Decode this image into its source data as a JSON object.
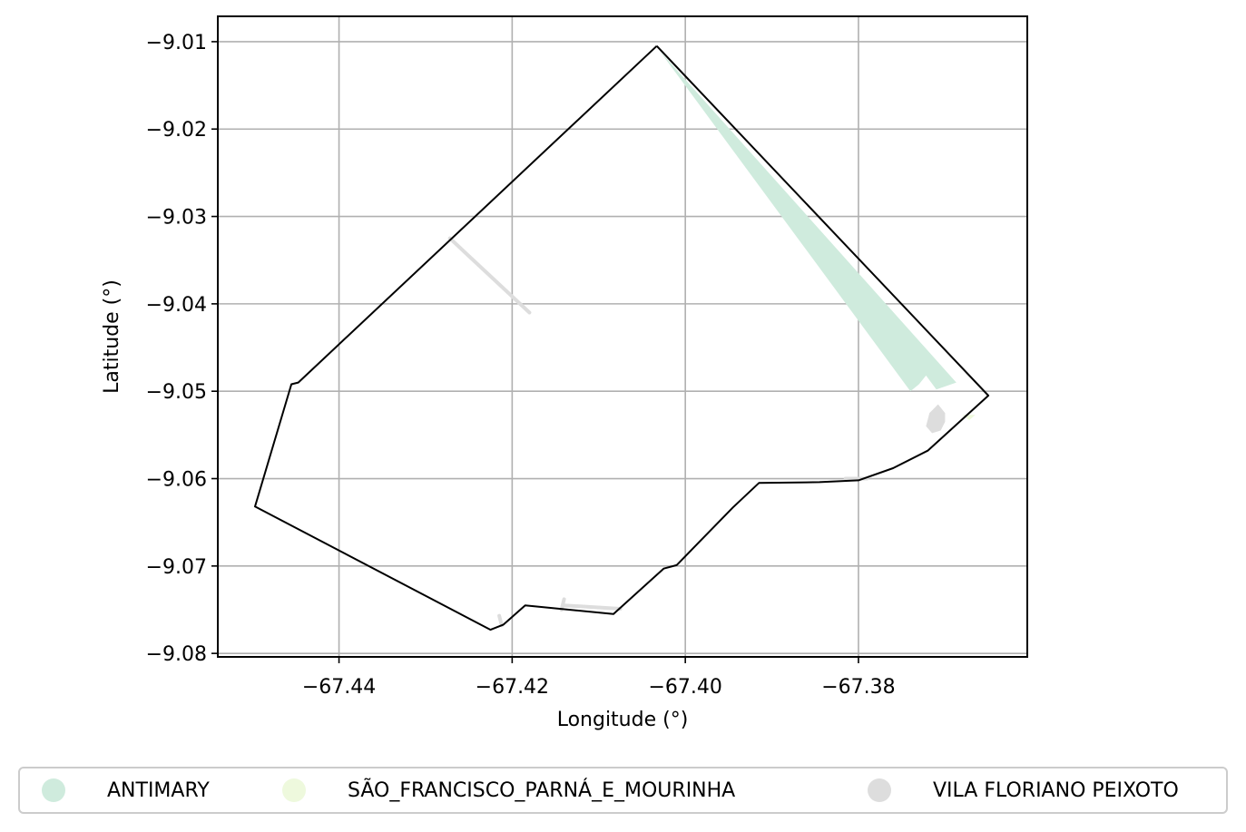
{
  "chart_data": {
    "type": "map",
    "title": "",
    "xlabel": "Longitude (°)",
    "ylabel": "Latitude (°)",
    "xlim": [
      -67.454,
      -67.3605
    ],
    "ylim": [
      -9.0804,
      -9.0071
    ],
    "xticks": [
      -67.44,
      -67.42,
      -67.4,
      -67.38
    ],
    "xtick_labels": [
      "−67.44",
      "−67.42",
      "−67.40",
      "−67.38"
    ],
    "yticks": [
      -9.01,
      -9.02,
      -9.03,
      -9.04,
      -9.05,
      -9.06,
      -9.07,
      -9.08
    ],
    "ytick_labels": [
      "−9.01",
      "−9.02",
      "−9.03",
      "−9.04",
      "−9.05",
      "−9.06",
      "−9.07",
      "−9.08"
    ],
    "grid": true,
    "legend_position": "bottom",
    "boundary": [
      [
        -67.4033,
        -9.0105
      ],
      [
        -67.365,
        -9.0505
      ],
      [
        -67.372,
        -9.0568
      ],
      [
        -67.376,
        -9.0588
      ],
      [
        -67.38,
        -9.0602
      ],
      [
        -67.3845,
        -9.0604
      ],
      [
        -67.3915,
        -9.0605
      ],
      [
        -67.3945,
        -9.0633
      ],
      [
        -67.401,
        -9.0699
      ],
      [
        -67.4025,
        -9.0703
      ],
      [
        -67.4083,
        -9.0755
      ],
      [
        -67.4185,
        -9.0745
      ],
      [
        -67.421,
        -9.0767
      ],
      [
        -67.4225,
        -9.0773
      ],
      [
        -67.4497,
        -9.0632
      ],
      [
        -67.4455,
        -9.0492
      ],
      [
        -67.4447,
        -9.049
      ],
      [
        -67.4033,
        -9.0105
      ]
    ],
    "series": [
      {
        "name": "ANTIMARY",
        "color": "#cfebdd",
        "polygons": [
          [
            [
              -67.403,
              -9.011
            ],
            [
              -67.3687,
              -9.049
            ],
            [
              -67.371,
              -9.0498
            ],
            [
              -67.3722,
              -9.0482
            ],
            [
              -67.373,
              -9.0492
            ],
            [
              -67.374,
              -9.05
            ],
            [
              -67.403,
              -9.011
            ]
          ]
        ]
      },
      {
        "name": "SÃO_FRANCISCO_PARNÁ_E_MOURINHA",
        "color": "#eef9dd",
        "polygons": [
          [
            [
              -67.368,
              -9.0527
            ],
            [
              -67.3665,
              -9.0527
            ],
            [
              -67.3672,
              -9.0533
            ],
            [
              -67.368,
              -9.0527
            ]
          ]
        ]
      },
      {
        "name": "VILA FLORIANO PEIXOTO",
        "color": "#dddddd",
        "polylines": [
          [
            [
              -67.4272,
              -9.0325
            ],
            [
              -67.418,
              -9.041
            ]
          ],
          [
            [
              -67.3815,
              -9.06
            ],
            [
              -67.379,
              -9.06
            ]
          ],
          [
            [
              -67.4212,
              -9.0768
            ],
            [
              -67.4215,
              -9.0757
            ]
          ],
          [
            [
              -67.4143,
              -9.075
            ],
            [
              -67.414,
              -9.0738
            ]
          ],
          [
            [
              -67.414,
              -9.0745
            ],
            [
              -67.4075,
              -9.0749
            ]
          ]
        ],
        "polygons": [
          [
            [
              -67.3708,
              -9.0515
            ],
            [
              -67.37,
              -9.0525
            ],
            [
              -67.37,
              -9.0535
            ],
            [
              -67.3705,
              -9.0545
            ],
            [
              -67.3715,
              -9.0548
            ],
            [
              -67.3722,
              -9.054
            ],
            [
              -67.3718,
              -9.0525
            ],
            [
              -67.3708,
              -9.0515
            ]
          ]
        ]
      }
    ]
  },
  "legend": {
    "items": [
      {
        "label": "ANTIMARY",
        "color": "#cfebdd"
      },
      {
        "label": "SÃO_FRANCISCO_PARNÁ_E_MOURINHA",
        "color": "#eef9dd"
      },
      {
        "label": "VILA FLORIANO PEIXOTO",
        "color": "#dddddd"
      }
    ]
  }
}
